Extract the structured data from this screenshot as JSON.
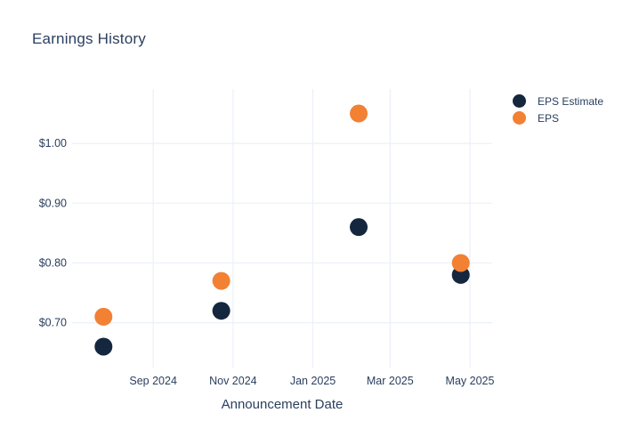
{
  "style": {
    "background": "#FFFFFF",
    "text_color": "#2A3F5F",
    "grid_color": "#EBF0F8",
    "estimate_color": "#14273F",
    "actual_color": "#F28134"
  },
  "chart_data": {
    "type": "scatter",
    "title": "Earnings History",
    "xlabel": "Announcement Date",
    "ylabel": "",
    "grid": true,
    "legend_position": "right",
    "marker_diameter_px": 20,
    "x_ticks": [
      {
        "date": "2024-09-01",
        "label": "Sep 2024"
      },
      {
        "date": "2024-11-01",
        "label": "Nov 2024"
      },
      {
        "date": "2025-01-01",
        "label": "Jan 2025"
      },
      {
        "date": "2025-03-01",
        "label": "Mar 2025"
      },
      {
        "date": "2025-05-01",
        "label": "May 2025"
      }
    ],
    "y_ticks": [
      {
        "value": 0.7,
        "label": "$0.70"
      },
      {
        "value": 0.8,
        "label": "$0.80"
      },
      {
        "value": 0.9,
        "label": "$0.90"
      },
      {
        "value": 1.0,
        "label": "$1.00"
      }
    ],
    "xlim": [
      "2024-07-01",
      "2025-05-18"
    ],
    "ylim": [
      0.625,
      1.091
    ],
    "series": [
      {
        "name": "EPS Estimate",
        "color": "#14273F",
        "points": [
          {
            "date": "2024-07-25",
            "value": 0.66
          },
          {
            "date": "2024-10-23",
            "value": 0.72
          },
          {
            "date": "2025-02-05",
            "value": 0.86
          },
          {
            "date": "2025-04-24",
            "value": 0.78
          }
        ]
      },
      {
        "name": "EPS",
        "color": "#F28134",
        "points": [
          {
            "date": "2024-07-25",
            "value": 0.71
          },
          {
            "date": "2024-10-23",
            "value": 0.77
          },
          {
            "date": "2025-02-05",
            "value": 1.05
          },
          {
            "date": "2025-04-24",
            "value": 0.8
          }
        ]
      }
    ]
  }
}
